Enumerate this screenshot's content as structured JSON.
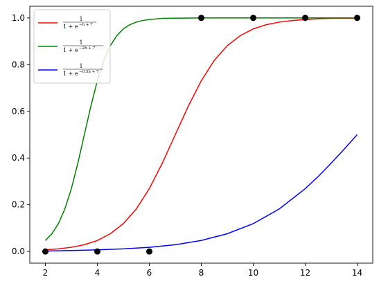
{
  "chart_data": {
    "type": "line",
    "title": "",
    "xlabel": "",
    "ylabel": "",
    "xlim": [
      1.4,
      14.6
    ],
    "ylim": [
      -0.05,
      1.05
    ],
    "xticks": [
      2,
      4,
      6,
      8,
      10,
      12,
      14
    ],
    "yticks": [
      0.0,
      0.2,
      0.4,
      0.6,
      0.8,
      1.0
    ],
    "xtick_labels": [
      "2",
      "4",
      "6",
      "8",
      "10",
      "12",
      "14"
    ],
    "ytick_labels": [
      "0.0",
      "0.2",
      "0.4",
      "0.6",
      "0.8",
      "1.0"
    ],
    "grid": false,
    "legend_position": "upper-left",
    "series": [
      {
        "name_num": "1",
        "name_den": "1 + e",
        "name_exp": "−h + 7",
        "color": "#ff0000",
        "x": [
          2.0,
          2.5,
          3.0,
          3.5,
          4.0,
          4.5,
          5.0,
          5.5,
          6.0,
          6.5,
          7.0,
          7.5,
          8.0,
          8.5,
          9.0,
          9.5,
          10.0,
          10.5,
          11.0,
          11.5,
          12.0,
          12.5,
          13.0,
          13.5,
          14.0
        ],
        "y": [
          0.007,
          0.011,
          0.018,
          0.029,
          0.047,
          0.076,
          0.119,
          0.182,
          0.269,
          0.378,
          0.5,
          0.622,
          0.731,
          0.818,
          0.881,
          0.924,
          0.953,
          0.971,
          0.982,
          0.989,
          0.993,
          0.996,
          0.998,
          0.998,
          0.999
        ]
      },
      {
        "name_num": "1",
        "name_den": "1 + e",
        "name_exp": "−2h + 7",
        "color": "#008000",
        "x": [
          2.0,
          2.25,
          2.5,
          2.75,
          3.0,
          3.25,
          3.5,
          3.75,
          4.0,
          4.25,
          4.5,
          4.75,
          5.0,
          5.25,
          5.5,
          5.75,
          6.0,
          6.5,
          7.0,
          8.0,
          9.0,
          10.0,
          12.0,
          14.0
        ],
        "y": [
          0.047,
          0.076,
          0.119,
          0.182,
          0.269,
          0.378,
          0.5,
          0.622,
          0.731,
          0.818,
          0.881,
          0.924,
          0.953,
          0.971,
          0.982,
          0.989,
          0.993,
          0.998,
          0.999,
          1.0,
          1.0,
          1.0,
          1.0,
          1.0
        ]
      },
      {
        "name_num": "1",
        "name_den": "1 + e",
        "name_exp": "−0.5h + 7",
        "color": "#0000ff",
        "x": [
          2.0,
          3.0,
          4.0,
          5.0,
          6.0,
          7.0,
          8.0,
          9.0,
          10.0,
          11.0,
          12.0,
          12.5,
          13.0,
          13.5,
          14.0
        ],
        "y": [
          0.002,
          0.004,
          0.007,
          0.011,
          0.018,
          0.029,
          0.047,
          0.076,
          0.119,
          0.182,
          0.269,
          0.321,
          0.378,
          0.438,
          0.5
        ]
      }
    ],
    "points": {
      "color": "#000000",
      "x": [
        2,
        4,
        6,
        8,
        10,
        12,
        14
      ],
      "y": [
        0,
        0,
        0,
        1,
        1,
        1,
        1
      ]
    }
  }
}
